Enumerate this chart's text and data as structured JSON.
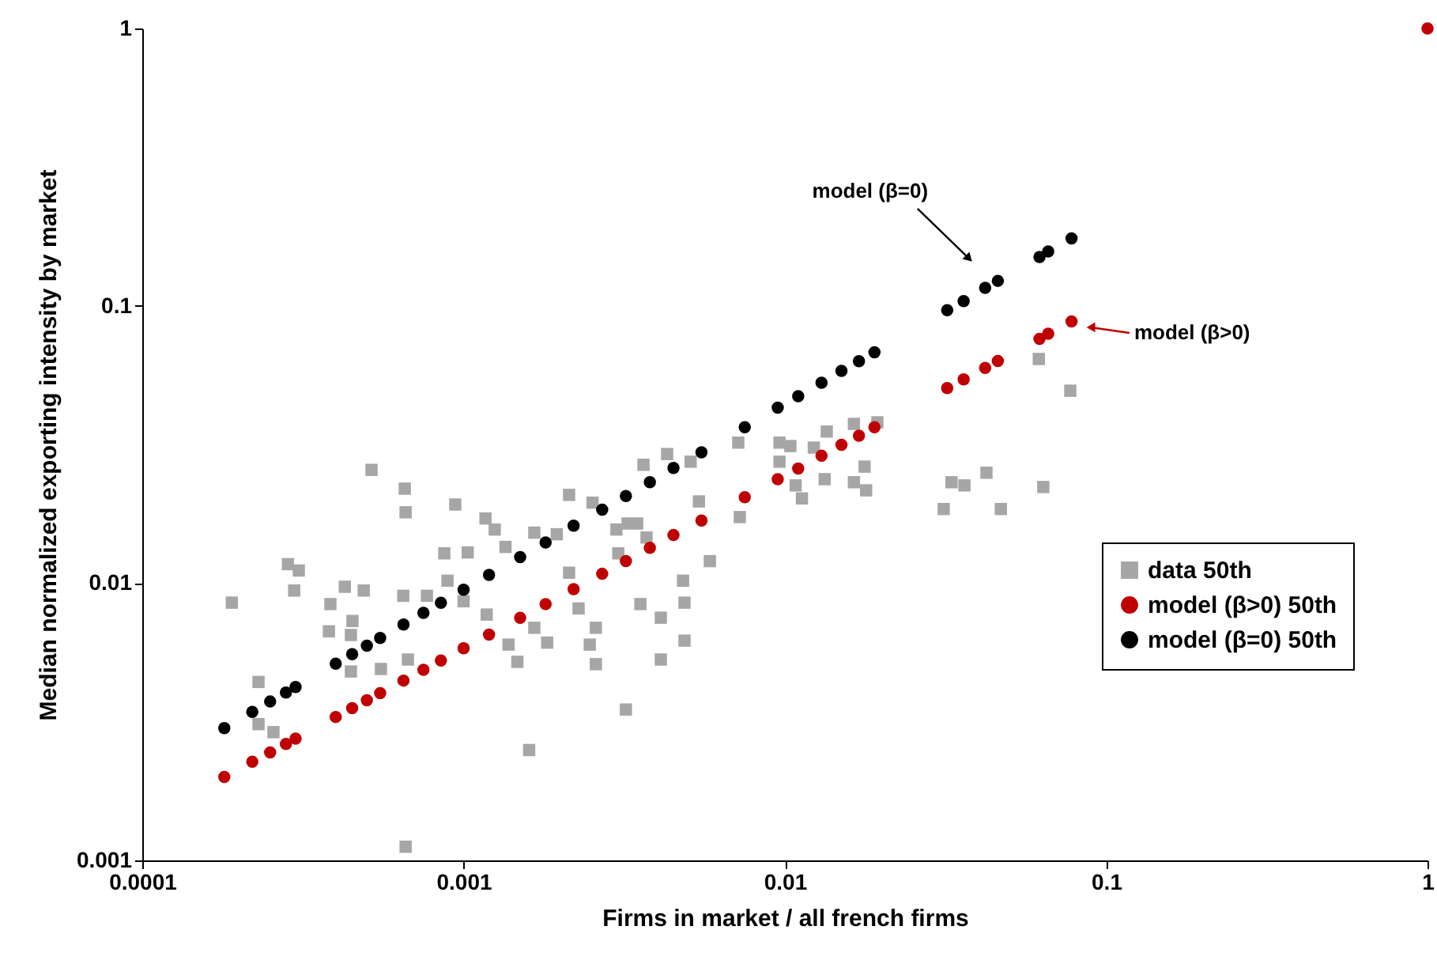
{
  "chart_data": {
    "type": "scatter",
    "xlabel": "Firms in market / all french firms",
    "ylabel": "Median normalized exporting intensity by market",
    "log": "xy",
    "xlim": [
      0.0001,
      1
    ],
    "ylim": [
      0.001,
      1
    ],
    "xticks": [
      0.0001,
      0.001,
      0.01,
      0.1,
      1
    ],
    "yticks": [
      0.001,
      0.01,
      0.1,
      1
    ],
    "grid": false,
    "legend": "bottom right",
    "x": [
      0.00019,
      0.00023,
      0.00023,
      0.000256,
      0.000284,
      0.000307,
      0.000297,
      0.000385,
      0.000427,
      0.000489,
      0.000381,
      0.000451,
      0.000446,
      0.000446,
      0.000553,
      0.000517,
      0.000656,
      0.00066,
      0.000942,
      0.000871,
      0.00103,
      0.000649,
      0.000671,
      0.000769,
      0.000891,
      0.001,
      0.00066,
      0.00117,
      0.00125,
      0.00135,
      0.00118,
      0.00138,
      0.00147,
      0.00166,
      0.00166,
      0.00182,
      0.00195,
      0.00213,
      0.00213,
      0.00228,
      0.00252,
      0.00258,
      0.00247,
      0.00258,
      0.00299,
      0.00303,
      0.00324,
      0.00347,
      0.00355,
      0.00363,
      0.00371,
      0.00411,
      0.00411,
      0.0043,
      0.00509,
      0.00482,
      0.00487,
      0.00487,
      0.0054,
      0.00584,
      0.0032,
      0.00716,
      0.00724,
      0.00962,
      0.00962,
      0.0104,
      0.0123,
      0.0135,
      0.0164,
      0.0194,
      0.0133,
      0.0108,
      0.0113,
      0.0164,
      0.0179,
      0.0177,
      0.0617,
      0.0773,
      0.0424,
      0.033,
      0.0362,
      0.0637,
      0.0312,
      0.047,
      0.0016
    ],
    "series": [
      {
        "name": "data 50th",
        "color": "#a6a6a6",
        "marker": "square",
        "values": [
          0.0085,
          0.0044,
          0.0031,
          0.0029,
          0.0117,
          0.0111,
          0.0094,
          0.0084,
          0.0097,
          0.0094,
          0.0067,
          0.0073,
          0.0065,
          0.0048,
          0.0049,
          0.0256,
          0.0219,
          0.018,
          0.0192,
          0.0128,
          0.0129,
          0.009,
          0.0053,
          0.009,
          0.0102,
          0.0086,
          0.00112,
          0.0171,
          0.0156,
          0.0135,
          0.0077,
          0.006,
          0.0052,
          0.0152,
          0.0069,
          0.0061,
          0.015,
          0.0208,
          0.0109,
          0.0081,
          0.0195,
          0.0069,
          0.006,
          0.0051,
          0.0156,
          0.0128,
          0.0164,
          0.0164,
          0.0084,
          0.0267,
          0.0146,
          0.0075,
          0.0053,
          0.0292,
          0.0274,
          0.0102,
          0.0085,
          0.0062,
          0.0197,
          0.012,
          0.0035,
          0.0321,
          0.0173,
          0.0274,
          0.0321,
          0.0312,
          0.0308,
          0.0352,
          0.0375,
          0.038,
          0.0237,
          0.0225,
          0.0202,
          0.0231,
          0.0216,
          0.0263,
          0.0643,
          0.0494,
          0.025,
          0.0231,
          0.0225,
          0.0222,
          0.0185,
          0.0185,
          0.0025
        ]
      },
      {
        "name": "model (β>0) 50th",
        "color": "#c00000",
        "marker": "circle",
        "x": [
          0.00018,
          0.00022,
          0.00025,
          0.00028,
          0.0003,
          0.0004,
          0.00045,
          0.0005,
          0.00055,
          0.00065,
          0.00075,
          0.00085,
          0.001,
          0.0012,
          0.0015,
          0.0018,
          0.0022,
          0.0027,
          0.0032,
          0.0038,
          0.0045,
          0.0055,
          0.0075,
          0.0095,
          0.011,
          0.013,
          0.015,
          0.017,
          0.019,
          0.032,
          0.036,
          0.042,
          0.046,
          0.062,
          0.066,
          0.078,
          1
        ],
        "values": [
          0.002,
          0.00227,
          0.00245,
          0.00263,
          0.00275,
          0.00329,
          0.00354,
          0.00378,
          0.00401,
          0.00445,
          0.00487,
          0.00526,
          0.00582,
          0.00652,
          0.00749,
          0.0084,
          0.00951,
          0.0108,
          0.012,
          0.0134,
          0.0149,
          0.0168,
          0.0204,
          0.0237,
          0.0259,
          0.0288,
          0.0315,
          0.034,
          0.0365,
          0.0505,
          0.0543,
          0.0597,
          0.0632,
          0.076,
          0.0793,
          0.0878,
          1
        ]
      },
      {
        "name": "model (β=0) 50th",
        "color": "#000000",
        "marker": "circle",
        "x": [
          0.00018,
          0.00022,
          0.00025,
          0.00028,
          0.0003,
          0.0004,
          0.00045,
          0.0005,
          0.00055,
          0.00065,
          0.00075,
          0.00085,
          0.001,
          0.0012,
          0.0015,
          0.0018,
          0.0022,
          0.0027,
          0.0032,
          0.0038,
          0.0045,
          0.0055,
          0.0075,
          0.0095,
          0.011,
          0.013,
          0.015,
          0.017,
          0.019,
          0.032,
          0.036,
          0.042,
          0.046,
          0.062,
          0.066,
          0.078
        ],
        "values": [
          0.003,
          0.00343,
          0.00374,
          0.00403,
          0.00422,
          0.00512,
          0.00554,
          0.00595,
          0.00634,
          0.00709,
          0.00781,
          0.00849,
          0.00946,
          0.0107,
          0.0124,
          0.014,
          0.0161,
          0.0184,
          0.0206,
          0.0231,
          0.026,
          0.0296,
          0.0365,
          0.0429,
          0.0472,
          0.0528,
          0.0582,
          0.0631,
          0.068,
          0.0964,
          0.104,
          0.116,
          0.123,
          0.15,
          0.157,
          0.175
        ]
      }
    ],
    "annotations": [
      {
        "text": "model (β=0)",
        "x": 0.0374,
        "y": 0.148
      },
      {
        "text": "model (β>0)",
        "x": 0.0896,
        "y": 0.0836
      }
    ]
  }
}
